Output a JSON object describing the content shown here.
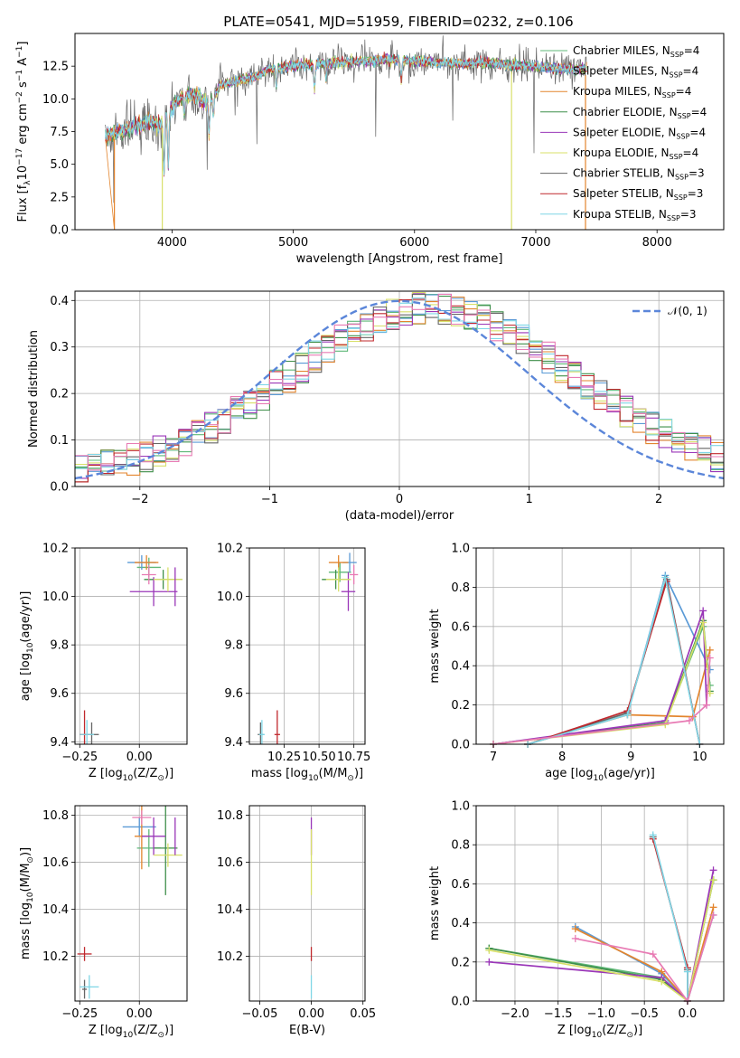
{
  "figure_title": "PLATE=0541, MJD=51959, FIBERID=0232, z=0.106",
  "models": [
    {
      "name": "Chabrier MILES, N",
      "sub": "SSP",
      "suffix": "=4",
      "color": "#5fb878"
    },
    {
      "name": "Salpeter MILES, N",
      "sub": "SSP",
      "suffix": "=4",
      "color": "#5a9ad6"
    },
    {
      "name": "Kroupa MILES, N",
      "sub": "SSP",
      "suffix": "=4",
      "color": "#e3852e"
    },
    {
      "name": "Chabrier ELODIE, N",
      "sub": "SSP",
      "suffix": "=4",
      "color": "#3f8f4a"
    },
    {
      "name": "Salpeter ELODIE, N",
      "sub": "SSP",
      "suffix": "=4",
      "color": "#9a36b8"
    },
    {
      "name": "Kroupa ELODIE, N",
      "sub": "SSP",
      "suffix": "=4",
      "color": "#d8e06a"
    },
    {
      "name": "Chabrier STELIB, N",
      "sub": "SSP",
      "suffix": "=3",
      "color": "#666666"
    },
    {
      "name": "Salpeter STELIB, N",
      "sub": "SSP",
      "suffix": "=3",
      "color": "#c0282d"
    },
    {
      "name": "Kroupa STELIB, N",
      "sub": "SSP",
      "suffix": "=3",
      "color": "#7fd6e6"
    }
  ],
  "chart_data": [
    {
      "id": "spectrum",
      "type": "line",
      "xlabel": "wavelength [Angstrom, rest frame]",
      "ylabel_parts": [
        "Flux [f",
        "λ",
        "10",
        "−17",
        " erg cm",
        "−2",
        " s",
        "−1",
        " A",
        "−1",
        "]"
      ],
      "xlim": [
        3200,
        8550
      ],
      "ylim": [
        0,
        15
      ],
      "xticks": [
        4000,
        5000,
        6000,
        7000,
        8000
      ],
      "yticks": [
        0.0,
        2.5,
        5.0,
        7.5,
        10.0,
        12.5
      ],
      "ytick_labels": [
        "0.0",
        "2.5",
        "5.0",
        "7.5",
        "10.0",
        "12.5"
      ],
      "legend": "top-right",
      "continuum": {
        "x": [
          3450,
          3550,
          3700,
          3800,
          3900,
          4000,
          4100,
          4200,
          4300,
          4400,
          4500,
          4600,
          4700,
          4800,
          4900,
          5000,
          5200,
          5400,
          5600,
          5800,
          6000,
          6200,
          6400,
          6600,
          6800,
          7000,
          7200,
          7400
        ],
        "y": [
          7.2,
          7.5,
          7.9,
          8.3,
          8.0,
          9.3,
          10.4,
          10.2,
          9.6,
          11.1,
          11.3,
          11.5,
          11.7,
          12.3,
          12.4,
          12.5,
          12.7,
          12.8,
          12.9,
          13.0,
          12.9,
          12.8,
          12.7,
          12.8,
          12.6,
          12.5,
          12.3,
          12.3
        ]
      },
      "absorption_lines": [
        {
          "x": 3934,
          "depth": 4.5
        },
        {
          "x": 3969,
          "depth": 4.0
        },
        {
          "x": 4102,
          "depth": 1.5
        },
        {
          "x": 4305,
          "depth": 2.5
        },
        {
          "x": 4341,
          "depth": 1.5
        },
        {
          "x": 4861,
          "depth": 1.5
        },
        {
          "x": 5175,
          "depth": 2.0
        },
        {
          "x": 5270,
          "depth": 1.2
        },
        {
          "x": 5890,
          "depth": 1.5
        }
      ],
      "zero_drops": [
        3525,
        3920,
        6800,
        7410
      ]
    },
    {
      "id": "residual-histogram",
      "type": "bar",
      "xlabel": "(data-model)/error",
      "ylabel": "Normed distribution",
      "xlim": [
        -2.5,
        2.5
      ],
      "ylim": [
        0,
        0.42
      ],
      "xticks": [
        -2,
        -1,
        0,
        1,
        2
      ],
      "xtick_labels": [
        "−2",
        "−1",
        "0",
        "1",
        "2"
      ],
      "yticks": [
        0.0,
        0.1,
        0.2,
        0.3,
        0.4
      ],
      "ytick_labels": [
        "0.0",
        "0.1",
        "0.2",
        "0.3",
        "0.4"
      ],
      "bins": 50,
      "reference_curve": {
        "label_text": "𝒩(0, 1)",
        "mean": 0,
        "sigma": 1,
        "color": "#5b86d9"
      },
      "legend": "top-right"
    },
    {
      "id": "age-vs-Z",
      "type": "scatter",
      "xlabel_parts": [
        "Z [log",
        "10",
        "(Z/Z",
        "⊙",
        ")]"
      ],
      "ylabel_parts": [
        "age  [log",
        "10",
        "(age/yr)]"
      ],
      "xlim": [
        -0.27,
        0.2
      ],
      "ylim": [
        9.39,
        10.2
      ],
      "xticks": [
        -0.25,
        0.0
      ],
      "xtick_labels": [
        "−0.25",
        "0.00"
      ],
      "yticks": [
        9.4,
        9.6,
        9.8,
        10.0,
        10.2
      ],
      "ytick_labels": [
        "9.4",
        "9.6",
        "9.8",
        "10.0",
        "10.2"
      ],
      "points": [
        {
          "m": 0,
          "x": 0.04,
          "y": 10.12,
          "xerr": 0.05,
          "yerr": 0.04
        },
        {
          "m": 1,
          "x": 0.01,
          "y": 10.14,
          "xerr": 0.06,
          "yerr": 0.03
        },
        {
          "m": 2,
          "x": 0.03,
          "y": 10.14,
          "xerr": 0.05,
          "yerr": 0.03
        },
        {
          "m": 3,
          "x": 0.1,
          "y": 10.07,
          "xerr": 0.08,
          "yerr": 0.04
        },
        {
          "m": 4,
          "x": 0.06,
          "y": 10.02,
          "xerr": 0.1,
          "yerr": 0.06
        },
        {
          "m": 5,
          "x": 0.12,
          "y": 10.07,
          "xerr": 0.06,
          "yerr": 0.05
        },
        {
          "m": 6,
          "x": -0.2,
          "y": 9.43,
          "xerr": 0.03,
          "yerr": 0.05
        },
        {
          "m": 7,
          "x": -0.23,
          "y": 9.43,
          "xerr": 0.02,
          "yerr": 0.1
        },
        {
          "m": 8,
          "x": -0.22,
          "y": 9.43,
          "xerr": 0.03,
          "yerr": 0.06
        },
        {
          "m": 4,
          "x": 0.15,
          "y": 10.04,
          "xerr": 0.0,
          "yerr": 0.08
        },
        {
          "m": 1,
          "x": 0.04,
          "y": 10.09,
          "xerr": 0.03,
          "yerr": 0.04
        }
      ]
    },
    {
      "id": "age-vs-mass",
      "type": "scatter",
      "xlabel_parts": [
        "mass [log",
        "10",
        "(M/M",
        "⊙",
        ")]"
      ],
      "xlim": [
        10.0,
        10.83
      ],
      "ylim": [
        9.39,
        10.2
      ],
      "xticks": [
        10.25,
        10.5,
        10.75
      ],
      "xtick_labels": [
        "10.25",
        "10.50",
        "10.75"
      ],
      "yticks": [
        9.4,
        9.6,
        9.8,
        10.0,
        10.2
      ],
      "ytick_labels": [
        "9.4",
        "9.6",
        "9.8",
        "10.0",
        "10.2"
      ],
      "points": [
        {
          "m": 0,
          "x": 10.65,
          "y": 10.1,
          "xerr": 0.08,
          "yerr": 0.04
        },
        {
          "m": 1,
          "x": 10.72,
          "y": 10.14,
          "xerr": 0.05,
          "yerr": 0.04
        },
        {
          "m": 2,
          "x": 10.64,
          "y": 10.14,
          "xerr": 0.07,
          "yerr": 0.03
        },
        {
          "m": 3,
          "x": 10.62,
          "y": 10.07,
          "xerr": 0.1,
          "yerr": 0.04
        },
        {
          "m": 4,
          "x": 10.71,
          "y": 10.02,
          "xerr": 0.05,
          "yerr": 0.08
        },
        {
          "m": 5,
          "x": 10.64,
          "y": 10.07,
          "xerr": 0.09,
          "yerr": 0.05
        },
        {
          "m": 6,
          "x": 10.08,
          "y": 9.43,
          "xerr": 0.02,
          "yerr": 0.05
        },
        {
          "m": 7,
          "x": 10.2,
          "y": 9.43,
          "xerr": 0.02,
          "yerr": 0.1
        },
        {
          "m": 8,
          "x": 10.09,
          "y": 9.43,
          "xerr": 0.02,
          "yerr": 0.06
        },
        {
          "m": 1,
          "x": 10.75,
          "y": 10.09,
          "xerr": 0.03,
          "yerr": 0.04
        }
      ]
    },
    {
      "id": "mass-weight-vs-age",
      "type": "line",
      "xlabel_parts": [
        "age  [log",
        "10",
        "(age/yr)]"
      ],
      "ylabel": "mass weight",
      "xlim": [
        6.75,
        10.35
      ],
      "ylim": [
        0,
        1.0
      ],
      "xticks": [
        7,
        8,
        9,
        10
      ],
      "xtick_labels": [
        "7",
        "8",
        "9",
        "10"
      ],
      "yticks": [
        0.0,
        0.2,
        0.4,
        0.6,
        0.8,
        1.0
      ],
      "ytick_labels": [
        "0.0",
        "0.2",
        "0.4",
        "0.6",
        "0.8",
        "1.0"
      ],
      "series": [
        {
          "m": 0,
          "x": [
            7.0,
            9.5,
            10.05,
            10.15
          ],
          "y": [
            0.0,
            0.11,
            0.6,
            0.3
          ]
        },
        {
          "m": 1,
          "x": [
            7.5,
            8.95,
            9.5,
            10.15
          ],
          "y": [
            0.0,
            0.15,
            0.86,
            0.38
          ]
        },
        {
          "m": 2,
          "x": [
            7.5,
            8.95,
            9.9,
            10.15
          ],
          "y": [
            0.0,
            0.15,
            0.14,
            0.48
          ]
        },
        {
          "m": 3,
          "x": [
            7.0,
            9.5,
            10.05,
            10.15
          ],
          "y": [
            0.0,
            0.11,
            0.63,
            0.27
          ]
        },
        {
          "m": 4,
          "x": [
            7.0,
            9.5,
            10.05,
            10.1
          ],
          "y": [
            0.0,
            0.12,
            0.68,
            0.2
          ]
        },
        {
          "m": 5,
          "x": [
            7.0,
            9.5,
            10.05,
            10.15
          ],
          "y": [
            0.0,
            0.1,
            0.62,
            0.26
          ]
        },
        {
          "m": 6,
          "x": [
            7.5,
            8.95,
            9.52,
            10.0
          ],
          "y": [
            0.0,
            0.16,
            0.84,
            0.0
          ]
        },
        {
          "m": 7,
          "x": [
            7.5,
            8.95,
            9.52,
            10.0
          ],
          "y": [
            0.0,
            0.17,
            0.83,
            0.0
          ]
        },
        {
          "m": 8,
          "x": [
            7.5,
            8.95,
            9.5,
            10.0
          ],
          "y": [
            0.0,
            0.15,
            0.85,
            0.0
          ]
        },
        {
          "m": 4,
          "x": [
            7.0,
            9.85,
            10.1,
            10.15
          ],
          "y": [
            0.0,
            0.12,
            0.2,
            0.44
          ],
          "style": "pink"
        }
      ]
    },
    {
      "id": "mass-vs-Z",
      "type": "scatter",
      "xlabel_parts": [
        "Z [log",
        "10",
        "(Z/Z",
        "⊙",
        ")]"
      ],
      "ylabel_parts": [
        "mass [log",
        "10",
        "(M/M",
        "⊙",
        ")]"
      ],
      "xlim": [
        -0.27,
        0.2
      ],
      "ylim": [
        10.01,
        10.84
      ],
      "xticks": [
        -0.25,
        0.0
      ],
      "xtick_labels": [
        "−0.25",
        "0.00"
      ],
      "yticks": [
        10.2,
        10.4,
        10.6,
        10.8
      ],
      "ytick_labels": [
        "10.2",
        "10.4",
        "10.6",
        "10.8"
      ],
      "points": [
        {
          "m": 0,
          "x": 0.04,
          "y": 10.66,
          "xerr": 0.05,
          "yerr": 0.08
        },
        {
          "m": 1,
          "x": 0.0,
          "y": 10.75,
          "xerr": 0.07,
          "yerr": 0.04
        },
        {
          "m": 2,
          "x": 0.01,
          "y": 10.71,
          "xerr": 0.03,
          "yerr": 0.14
        },
        {
          "m": 3,
          "x": 0.11,
          "y": 10.66,
          "xerr": 0.05,
          "yerr": 0.2
        },
        {
          "m": 4,
          "x": 0.06,
          "y": 10.71,
          "xerr": 0.05,
          "yerr": 0.08
        },
        {
          "m": 5,
          "x": 0.12,
          "y": 10.63,
          "xerr": 0.06,
          "yerr": 0.05
        },
        {
          "m": 6,
          "x": -0.23,
          "y": 10.06,
          "xerr": 0.01,
          "yerr": 0.04
        },
        {
          "m": 7,
          "x": -0.23,
          "y": 10.21,
          "xerr": 0.03,
          "yerr": 0.03
        },
        {
          "m": 8,
          "x": -0.21,
          "y": 10.07,
          "xerr": 0.04,
          "yerr": 0.05
        },
        {
          "m": 4,
          "x": 0.15,
          "y": 10.71,
          "xerr": 0.0,
          "yerr": 0.08
        },
        {
          "m": 2,
          "x": 0.01,
          "y": 10.79,
          "xerr": 0.04,
          "yerr": 0.03
        }
      ]
    },
    {
      "id": "mass-vs-EBV",
      "type": "scatter",
      "xlabel": "E(B-V)",
      "xlim": [
        -0.06,
        0.052
      ],
      "ylim": [
        10.01,
        10.84
      ],
      "xticks": [
        -0.05,
        0.0,
        0.05
      ],
      "xtick_labels": [
        "−0.05",
        "0.00",
        "0.05"
      ],
      "yticks": [
        10.2,
        10.4,
        10.6,
        10.8
      ],
      "ytick_labels": [
        "10.2",
        "10.4",
        "10.6",
        "10.8"
      ],
      "points": [
        {
          "m": 4,
          "x": 0.0,
          "y": 10.71,
          "xerr": 0.0,
          "yerr": 0.08
        },
        {
          "m": 5,
          "x": 0.0,
          "y": 10.6,
          "xerr": 0.0,
          "yerr": 0.14
        },
        {
          "m": 7,
          "x": 0.0,
          "y": 10.21,
          "xerr": 0.0,
          "yerr": 0.03
        },
        {
          "m": 8,
          "x": 0.0,
          "y": 10.07,
          "xerr": 0.0,
          "yerr": 0.05
        }
      ]
    },
    {
      "id": "mass-weight-vs-Z",
      "type": "line",
      "xlabel_parts": [
        "Z [log",
        "10",
        "(Z/Z",
        "⊙",
        ")]"
      ],
      "ylabel": "mass weight",
      "xlim": [
        -2.45,
        0.42
      ],
      "ylim": [
        0,
        1.0
      ],
      "xticks": [
        -2.0,
        -1.5,
        -1.0,
        -0.5,
        0.0
      ],
      "xtick_labels": [
        "−2.0",
        "−1.5",
        "−1.0",
        "−0.5",
        "0.0"
      ],
      "yticks": [
        0.0,
        0.2,
        0.4,
        0.6,
        0.8,
        1.0
      ],
      "ytick_labels": [
        "0.0",
        "0.2",
        "0.4",
        "0.6",
        "0.8",
        "1.0"
      ],
      "series": [
        {
          "m": 0,
          "x": [
            -2.3,
            -0.3,
            0.0,
            0.3
          ],
          "y": [
            0.27,
            0.12,
            0.0,
            0.62
          ]
        },
        {
          "m": 1,
          "x": [
            -1.3,
            -0.3,
            0.0,
            0.3
          ],
          "y": [
            0.38,
            0.14,
            0.0,
            0.44
          ]
        },
        {
          "m": 2,
          "x": [
            -1.3,
            -0.3,
            0.0,
            0.3
          ],
          "y": [
            0.37,
            0.15,
            0.0,
            0.48
          ]
        },
        {
          "m": 3,
          "x": [
            -2.3,
            -0.3,
            0.0,
            0.3
          ],
          "y": [
            0.27,
            0.11,
            0.0,
            0.62
          ]
        },
        {
          "m": 4,
          "x": [
            -2.3,
            -0.3,
            0.0,
            0.3
          ],
          "y": [
            0.2,
            0.12,
            0.0,
            0.67
          ]
        },
        {
          "m": 5,
          "x": [
            -2.3,
            -0.3,
            0.0,
            0.3
          ],
          "y": [
            0.26,
            0.1,
            0.0,
            0.62
          ]
        },
        {
          "m": 6,
          "x": [
            -0.4,
            0.0,
            0.0
          ],
          "y": [
            0.84,
            0.16,
            0.0
          ]
        },
        {
          "m": 7,
          "x": [
            -0.4,
            0.0,
            0.0
          ],
          "y": [
            0.83,
            0.17,
            0.0
          ]
        },
        {
          "m": 8,
          "x": [
            -0.4,
            0.0,
            0.0
          ],
          "y": [
            0.85,
            0.15,
            0.0
          ]
        },
        {
          "m": 4,
          "x": [
            -1.3,
            -0.4,
            0.0,
            0.3
          ],
          "y": [
            0.32,
            0.24,
            0.0,
            0.44
          ],
          "style": "pink"
        }
      ]
    }
  ]
}
